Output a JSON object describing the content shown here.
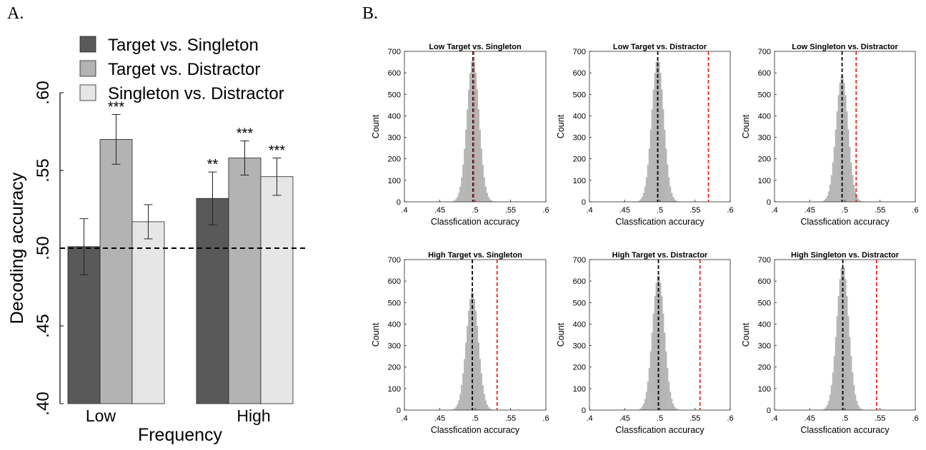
{
  "panel_labels": {
    "a": "A.",
    "b": "B."
  },
  "chart_data": [
    {
      "type": "bar",
      "xlabel": "Frequency",
      "ylabel": "Decoding accuracy",
      "categories": [
        "Low",
        "High"
      ],
      "ylim": [
        0.4,
        0.6
      ],
      "yticks": [
        0.4,
        0.45,
        0.5,
        0.55,
        0.6
      ],
      "ytick_labels": [
        ".40",
        ".45",
        ".50",
        ".55",
        ".60"
      ],
      "chance_level": 0.5,
      "legend_position": "top",
      "series": [
        {
          "name": "Target vs. Singleton",
          "color": "#595959",
          "values": [
            0.501,
            0.532
          ],
          "errors": [
            0.018,
            0.017
          ],
          "significance": [
            "",
            "**"
          ]
        },
        {
          "name": "Target vs. Distractor",
          "color": "#b3b3b3",
          "values": [
            0.57,
            0.558
          ],
          "errors": [
            0.016,
            0.011
          ],
          "significance": [
            "***",
            "***"
          ]
        },
        {
          "name": "Singleton vs. Distractor",
          "color": "#e6e6e6",
          "values": [
            0.517,
            0.546
          ],
          "errors": [
            0.011,
            0.012
          ],
          "significance": [
            "",
            "***"
          ]
        }
      ]
    },
    {
      "type": "bar",
      "subtype": "histogram-grid",
      "xlabel": "Classfication accuracy",
      "ylabel": "Count",
      "xlim": [
        0.4,
        0.6
      ],
      "ylim": [
        0,
        700
      ],
      "xtick_labels": [
        ".4",
        ".45",
        ".5",
        ".55",
        ".6"
      ],
      "ytick_values": [
        0,
        100,
        200,
        300,
        400,
        500,
        600,
        700
      ],
      "null_line_color": "#000000",
      "observed_line_color": "#e8271c",
      "bar_color": "#b3b3b3",
      "panels": [
        {
          "title": "Low Target vs. Singleton",
          "null_mean": 0.497,
          "null_sd": 0.0085,
          "peak": 670,
          "observed": 0.498
        },
        {
          "title": "Low Target vs. Distractor",
          "null_mean": 0.497,
          "null_sd": 0.0085,
          "peak": 670,
          "observed": 0.569
        },
        {
          "title": "Low Singleton vs. Distractor",
          "null_mean": 0.496,
          "null_sd": 0.0085,
          "peak": 590,
          "observed": 0.516
        },
        {
          "title": "High Target vs. Singleton",
          "null_mean": 0.496,
          "null_sd": 0.0085,
          "peak": 550,
          "observed": 0.531
        },
        {
          "title": "High Target vs. Distractor",
          "null_mean": 0.498,
          "null_sd": 0.0085,
          "peak": 630,
          "observed": 0.557
        },
        {
          "title": "High Singleton vs. Distractor",
          "null_mean": 0.497,
          "null_sd": 0.0085,
          "peak": 680,
          "observed": 0.545
        }
      ]
    }
  ]
}
